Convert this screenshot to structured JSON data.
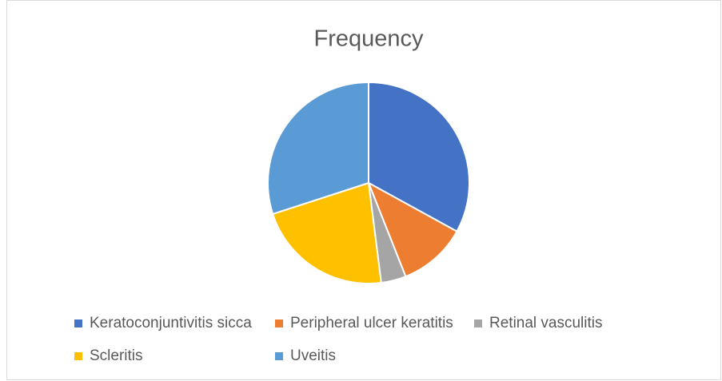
{
  "chart_data": {
    "type": "pie",
    "title": "Frequency",
    "categories": [
      "Keratoconjuntivitis sicca",
      "Peripheral ulcer keratitis",
      "Retinal vasculitis",
      "Scleritis",
      "Uveitis"
    ],
    "values": [
      33,
      11,
      4,
      22,
      30
    ],
    "colors": [
      "#4472c4",
      "#ed7d31",
      "#a5a5a5",
      "#ffc000",
      "#5b9bd5"
    ],
    "legend": "bottom"
  }
}
